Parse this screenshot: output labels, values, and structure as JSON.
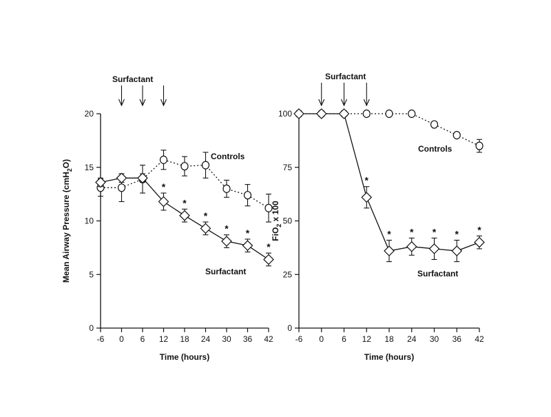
{
  "chart_data": [
    {
      "type": "line",
      "title": "",
      "xlabel": "Time (hours)",
      "ylabel": "Mean Airway Pressure (cmH2O)",
      "ylabel_parts": {
        "main": "Mean Airway Pressure (cmH",
        "sub": "2",
        "tail": "O)"
      },
      "xlim": [
        -6,
        42
      ],
      "ylim": [
        0,
        20
      ],
      "x_ticks": [
        -6,
        0,
        6,
        12,
        18,
        24,
        30,
        36,
        42
      ],
      "y_ticks": [
        0,
        5,
        10,
        15,
        20
      ],
      "grid": false,
      "annotation": {
        "text": "Surfactant",
        "arrow_times": [
          0,
          6,
          12
        ]
      },
      "series": [
        {
          "name": "Controls",
          "marker": "circle",
          "style": "dotted",
          "x": [
            -6,
            0,
            6,
            12,
            18,
            24,
            30,
            36,
            42
          ],
          "y": [
            13.1,
            13.1,
            13.9,
            15.7,
            15.1,
            15.2,
            13.0,
            12.4,
            11.2
          ],
          "err": [
            0.8,
            1.3,
            1.3,
            0.9,
            0.9,
            1.2,
            0.8,
            1.0,
            1.3
          ]
        },
        {
          "name": "Surfactant",
          "marker": "diamond",
          "style": "solid",
          "x": [
            -6,
            0,
            6,
            12,
            18,
            24,
            30,
            36,
            42
          ],
          "y": [
            13.6,
            14.0,
            14.0,
            11.8,
            10.5,
            9.3,
            8.1,
            7.7,
            6.4
          ],
          "err": [
            0.4,
            0.4,
            0.4,
            0.8,
            0.6,
            0.6,
            0.6,
            0.6,
            0.6
          ],
          "significant": [
            false,
            false,
            false,
            true,
            true,
            true,
            true,
            true,
            true
          ]
        }
      ]
    },
    {
      "type": "line",
      "title": "",
      "xlabel": "Time (hours)",
      "ylabel": "FiO2 x 100",
      "ylabel_parts": {
        "main": "FiO",
        "sub": "2",
        "tail": " x 100"
      },
      "xlim": [
        -6,
        42
      ],
      "ylim": [
        0,
        100
      ],
      "x_ticks": [
        -6,
        0,
        6,
        12,
        18,
        24,
        30,
        36,
        42
      ],
      "y_ticks": [
        0,
        25,
        50,
        75,
        100
      ],
      "grid": false,
      "annotation": {
        "text": "Surfactant",
        "arrow_times": [
          0,
          6,
          12
        ]
      },
      "series": [
        {
          "name": "Controls",
          "marker": "circle",
          "style": "dotted",
          "x": [
            -6,
            0,
            6,
            12,
            18,
            24,
            30,
            36,
            42
          ],
          "y": [
            100,
            100,
            100,
            100,
            100,
            100,
            95,
            90,
            85
          ],
          "err": [
            0,
            0,
            0,
            0,
            0,
            0,
            0,
            0,
            3
          ]
        },
        {
          "name": "Surfactant",
          "marker": "diamond",
          "style": "solid",
          "x": [
            -6,
            0,
            6,
            12,
            18,
            24,
            30,
            36,
            42
          ],
          "y": [
            100,
            100,
            100,
            61,
            36,
            38,
            37,
            36,
            40
          ],
          "err": [
            0,
            0,
            0,
            5,
            5,
            4,
            5,
            5,
            3
          ],
          "significant": [
            false,
            false,
            false,
            true,
            true,
            true,
            true,
            true,
            true
          ]
        }
      ]
    }
  ]
}
